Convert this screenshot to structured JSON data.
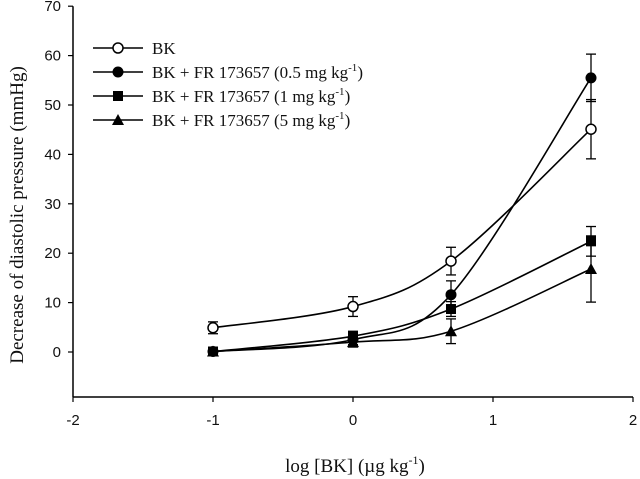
{
  "chart_data": {
    "type": "line",
    "title": "",
    "xlabel": "log [BK] (µg kg-1)",
    "xlabel_parts": {
      "main": "log [BK] (µg kg",
      "sup": "-1",
      "close": ")"
    },
    "ylabel": "Decrease of diastolic pressure (mmHg)",
    "xlim": [
      -2,
      2
    ],
    "ylim": [
      -9,
      70
    ],
    "x_ticks": [
      -2,
      -1,
      0,
      1,
      2
    ],
    "y_ticks": [
      0,
      10,
      20,
      30,
      40,
      50,
      60,
      70
    ],
    "grid": false,
    "legend_position": "upper-left",
    "x": [
      -1,
      0,
      0.7,
      1.7
    ],
    "series": [
      {
        "name": "BK",
        "label_main": "BK",
        "label_sup": "",
        "label_close": "",
        "marker": "open-circle",
        "values": [
          4.9,
          9.2,
          18.4,
          45.1
        ],
        "errors": [
          1.2,
          2.0,
          2.8,
          6.0
        ]
      },
      {
        "name": "BK + FR 173657 (0.5 mg kg-1)",
        "label_main": "BK + FR 173657 (0.5 mg kg",
        "label_sup": "-1",
        "label_close": ")",
        "marker": "filled-circle",
        "values": [
          0.1,
          2.5,
          11.6,
          55.5
        ],
        "errors": [
          0.5,
          1.0,
          2.8,
          4.8
        ]
      },
      {
        "name": "BK + FR 173657 (1 mg kg-1)",
        "label_main": "BK + FR 173657 (1 mg kg",
        "label_sup": "-1",
        "label_close": ")",
        "marker": "filled-square",
        "values": [
          0.1,
          3.2,
          8.7,
          22.4
        ],
        "errors": [
          0.5,
          1.0,
          1.5,
          3.0
        ]
      },
      {
        "name": "BK + FR 173657 (5 mg kg-1)",
        "label_main": "BK + FR 173657 (5 mg kg",
        "label_sup": "-1",
        "label_close": ")",
        "marker": "filled-triangle",
        "values": [
          0.1,
          2.0,
          4.2,
          16.8
        ],
        "errors": [
          0.5,
          1.0,
          2.5,
          6.7
        ]
      }
    ]
  }
}
